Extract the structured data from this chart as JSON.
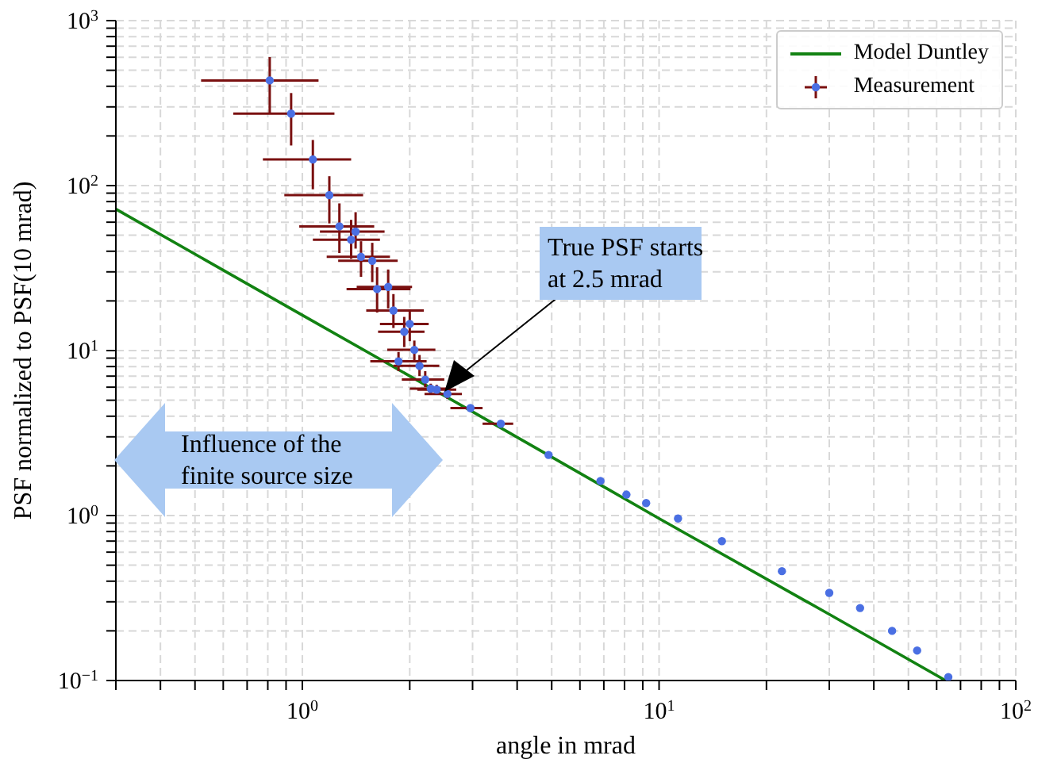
{
  "chart_data": {
    "type": "scatter",
    "xlabel": "angle in mrad",
    "ylabel": "PSF normalized to PSF(10 mrad)",
    "log": "xy",
    "grid": true,
    "legend": "top right",
    "xlim": [
      0.3,
      100
    ],
    "ylim": [
      0.1,
      1000
    ],
    "xticks": [
      {
        "value": 0.3,
        "label": null
      },
      {
        "value": 0.4,
        "label": null
      },
      {
        "value": 0.5,
        "label": null
      },
      {
        "value": 0.6,
        "label": null
      },
      {
        "value": 0.7,
        "label": null
      },
      {
        "value": 0.8,
        "label": null
      },
      {
        "value": 0.9,
        "label": null
      },
      {
        "value": 1,
        "label": "10$^{0}$"
      },
      {
        "value": 2,
        "label": null
      },
      {
        "value": 3,
        "label": null
      },
      {
        "value": 4,
        "label": null
      },
      {
        "value": 5,
        "label": null
      },
      {
        "value": 6,
        "label": null
      },
      {
        "value": 7,
        "label": null
      },
      {
        "value": 8,
        "label": null
      },
      {
        "value": 9,
        "label": null
      },
      {
        "value": 10,
        "label": "10$^{1}$"
      },
      {
        "value": 20,
        "label": null
      },
      {
        "value": 30,
        "label": null
      },
      {
        "value": 40,
        "label": null
      },
      {
        "value": 50,
        "label": null
      },
      {
        "value": 60,
        "label": null
      },
      {
        "value": 70,
        "label": null
      },
      {
        "value": 80,
        "label": null
      },
      {
        "value": 90,
        "label": null
      },
      {
        "value": 100,
        "label": "10$^{2}$"
      }
    ],
    "yticks": [
      {
        "value": 0.1,
        "label": "10$^{−1}$"
      },
      {
        "value": 0.2,
        "label": null
      },
      {
        "value": 0.3,
        "label": null
      },
      {
        "value": 0.4,
        "label": null
      },
      {
        "value": 0.5,
        "label": null
      },
      {
        "value": 0.6,
        "label": null
      },
      {
        "value": 0.7,
        "label": null
      },
      {
        "value": 0.8,
        "label": null
      },
      {
        "value": 0.9,
        "label": null
      },
      {
        "value": 1,
        "label": "10$^{0}$"
      },
      {
        "value": 2,
        "label": null
      },
      {
        "value": 3,
        "label": null
      },
      {
        "value": 4,
        "label": null
      },
      {
        "value": 5,
        "label": null
      },
      {
        "value": 6,
        "label": null
      },
      {
        "value": 7,
        "label": null
      },
      {
        "value": 8,
        "label": null
      },
      {
        "value": 9,
        "label": null
      },
      {
        "value": 10,
        "label": "10$^{1}$"
      },
      {
        "value": 20,
        "label": null
      },
      {
        "value": 30,
        "label": null
      },
      {
        "value": 40,
        "label": null
      },
      {
        "value": 50,
        "label": null
      },
      {
        "value": 60,
        "label": null
      },
      {
        "value": 70,
        "label": null
      },
      {
        "value": 80,
        "label": null
      },
      {
        "value": 90,
        "label": null
      },
      {
        "value": 100,
        "label": "10$^{2}$"
      },
      {
        "value": 200,
        "label": null
      },
      {
        "value": 300,
        "label": null
      },
      {
        "value": 400,
        "label": null
      },
      {
        "value": 500,
        "label": null
      },
      {
        "value": 600,
        "label": null
      },
      {
        "value": 700,
        "label": null
      },
      {
        "value": 800,
        "label": null
      },
      {
        "value": 900,
        "label": null
      },
      {
        "value": 1000,
        "label": "10$^{3}$"
      }
    ],
    "annotations": [
      "True PSF starts\nat 2.5 mrad",
      "Influence of the\nfinite source size"
    ],
    "series": [
      {
        "name": "Model Duntley",
        "type": "line",
        "color": "#128212",
        "marker": "none",
        "x": [
          0.3,
          1,
          3,
          10,
          30,
          63.6
        ],
        "values": [
          72,
          16.4,
          4.26,
          0.96,
          0.252,
          0.1
        ]
      },
      {
        "name": "Measurement",
        "color": "#4a6fe3",
        "marker": "circle",
        "x": [
          0.81,
          0.93,
          1.07,
          1.19,
          1.27,
          1.41,
          1.37,
          1.46,
          1.57,
          1.62,
          1.74,
          1.8,
          2.0,
          1.93,
          2.06,
          1.86,
          2.13,
          2.21,
          2.29,
          2.38,
          2.55,
          2.96,
          3.6,
          4.9,
          6.85,
          8.1,
          9.2,
          11.3,
          15,
          22.1,
          30,
          36.6,
          45,
          52.9,
          64.7
        ],
        "values": [
          434,
          273,
          144,
          87.5,
          56.6,
          52.6,
          47,
          37,
          35,
          23.6,
          24.3,
          17.5,
          14.5,
          13,
          10.1,
          8.6,
          8.07,
          6.67,
          5.88,
          5.8,
          5.46,
          4.48,
          3.6,
          2.33,
          1.62,
          1.34,
          1.19,
          0.96,
          0.7,
          0.46,
          0.34,
          0.275,
          0.2,
          0.152,
          0.105
        ],
        "xerrors": [
          [
            0.52,
            1.11
          ],
          [
            0.64,
            1.23
          ],
          [
            0.775,
            1.37
          ],
          [
            0.89,
            1.48
          ],
          [
            0.98,
            1.59
          ],
          [
            1.12,
            1.7
          ],
          [
            1.07,
            1.65
          ],
          [
            1.17,
            1.76
          ],
          [
            1.26,
            1.85
          ],
          [
            1.33,
            2.01
          ],
          [
            1.42,
            2.03
          ],
          [
            1.51,
            2.19
          ],
          [
            1.65,
            2.26
          ],
          [
            1.63,
            2.2
          ],
          [
            1.73,
            2.36
          ],
          [
            1.55,
            2.23
          ],
          [
            1.8,
            2.42
          ],
          [
            1.9,
            2.5
          ],
          [
            2.0,
            2.6
          ],
          [
            2.1,
            2.7
          ],
          [
            2.2,
            2.8
          ],
          [
            2.6,
            3.2
          ],
          [
            3.2,
            3.9
          ],
          null,
          null,
          null,
          null,
          null,
          null,
          null,
          null,
          null,
          null,
          null,
          null
        ],
        "errors": [
          [
            273,
            601
          ],
          [
            175,
            364
          ],
          [
            95,
            189
          ],
          [
            59,
            114
          ],
          [
            39,
            78
          ],
          [
            41.5,
            69
          ],
          [
            36,
            62
          ],
          [
            28,
            46
          ],
          [
            26,
            45
          ],
          [
            17,
            32
          ],
          [
            18,
            31
          ],
          [
            13.7,
            22
          ],
          [
            11.4,
            17.8
          ],
          [
            10.5,
            16
          ],
          [
            8.6,
            11.5
          ],
          [
            7.5,
            9.8
          ],
          [
            7,
            9.4
          ],
          [
            6,
            7.5
          ],
          [
            5.4,
            6.3
          ],
          [
            5.4,
            6.2
          ],
          [
            5.1,
            5.8
          ],
          null,
          null,
          null,
          null,
          null,
          null,
          null,
          null,
          null,
          null,
          null,
          null,
          null,
          null
        ]
      }
    ]
  }
}
